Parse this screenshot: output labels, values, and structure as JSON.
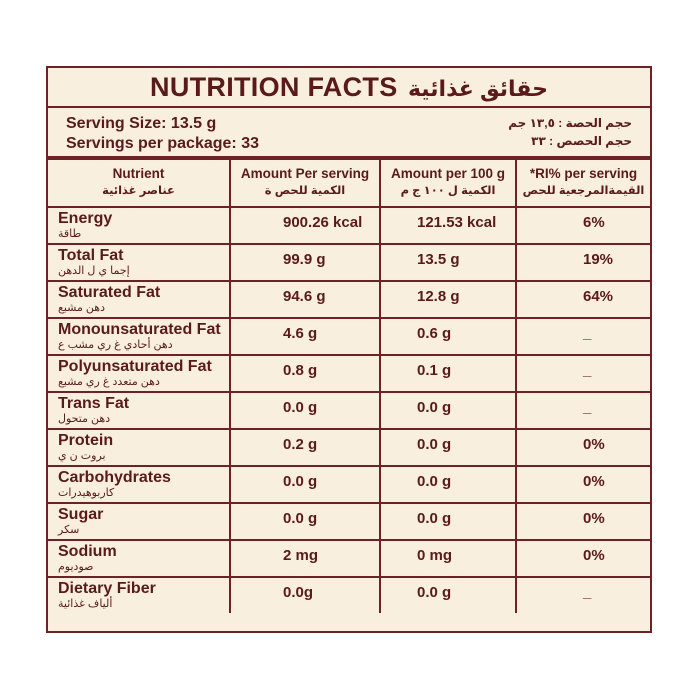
{
  "title": {
    "en": "NUTRITION FACTS",
    "ar": "حقائق غذائية"
  },
  "serving": {
    "size_en": "Serving Size: 13.5 g",
    "per_package_en": "Servings per package: 33",
    "size_ar": "حجم الحصة : ١٣,٥ جم",
    "per_package_ar": "حجم الحصص : ٣٣"
  },
  "headers": [
    {
      "en": "Nutrient",
      "ar": "عناصر غذائية"
    },
    {
      "en": "Amount Per serving",
      "ar": "الكمية للحص ة"
    },
    {
      "en": "Amount per 100 g",
      "ar": "الكمية ل ١٠٠ ج م"
    },
    {
      "en": "*RI% per serving",
      "ar": "القيمةالمرجعية للحص"
    }
  ],
  "rows": [
    {
      "name_en": "Energy",
      "name_ar": "طاقة",
      "per_serving": "900.26 kcal",
      "per_100g": "121.53 kcal",
      "ri": "6%"
    },
    {
      "name_en": "Total Fat",
      "name_ar": "إجما ي ل الدهن",
      "per_serving": "99.9 g",
      "per_100g": "13.5 g",
      "ri": "19%"
    },
    {
      "name_en": "Saturated Fat",
      "name_ar": "دهن مشبع",
      "per_serving": "94.6 g",
      "per_100g": "12.8 g",
      "ri": "64%"
    },
    {
      "name_en": "Monounsaturated Fat",
      "name_ar": "دهن أحادي غ ري مشب ع",
      "per_serving": "4.6 g",
      "per_100g": "0.6 g",
      "ri": "_"
    },
    {
      "name_en": "Polyunsaturated Fat",
      "name_ar": "دهن متعدد غ ري مشبع",
      "per_serving": "0.8 g",
      "per_100g": "0.1 g",
      "ri": "_"
    },
    {
      "name_en": "Trans Fat",
      "name_ar": "دهن متحول",
      "per_serving": "0.0 g",
      "per_100g": "0.0 g",
      "ri": "_"
    },
    {
      "name_en": "Protein",
      "name_ar": "بروت ن ي",
      "per_serving": "0.2 g",
      "per_100g": "0.0 g",
      "ri": "0%"
    },
    {
      "name_en": "Carbohydrates",
      "name_ar": "كاربوهيدرات",
      "per_serving": "0.0 g",
      "per_100g": "0.0 g",
      "ri": "0%"
    },
    {
      "name_en": "Sugar",
      "name_ar": "سكر",
      "per_serving": "0.0 g",
      "per_100g": "0.0 g",
      "ri": "0%"
    },
    {
      "name_en": "Sodium",
      "name_ar": "صوديوم",
      "per_serving": "2 mg",
      "per_100g": "0 mg",
      "ri": "0%"
    },
    {
      "name_en": "Dietary Fiber",
      "name_ar": "ألياف غذائية",
      "per_serving": "0.0g",
      "per_100g": "0.0 g",
      "ri": "_"
    }
  ],
  "colors": {
    "text": "#5a1a1c",
    "border": "#6b2326",
    "background": "#f8efdf"
  }
}
